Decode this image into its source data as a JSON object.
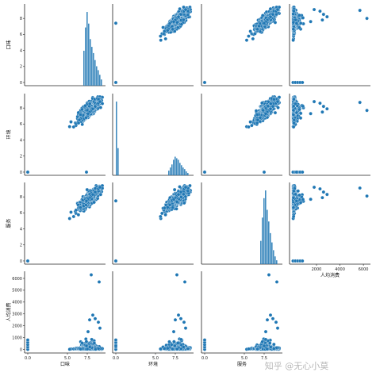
{
  "watermark": "知乎 @无心小莫",
  "chart_data": {
    "type": "scatter",
    "layout": "pairplot",
    "variables": [
      "口味",
      "环境",
      "服务",
      "人均消费"
    ],
    "colors": {
      "marker": "#1f77b4",
      "marker_edge": "#ffffff",
      "hist": "#1f77b4"
    },
    "grid": false,
    "axes": {
      "口味": {
        "range": [
          -0.4,
          9.8
        ],
        "ticks": [
          0,
          2,
          4,
          6,
          8
        ]
      },
      "环境": {
        "range": [
          -0.4,
          9.8
        ],
        "ticks": [
          0,
          2,
          4,
          6,
          8
        ]
      },
      "服务": {
        "range": [
          -0.4,
          9.8
        ],
        "ticks": [
          0,
          2,
          4,
          6,
          8
        ]
      },
      "人均消费": {
        "range": [
          -300,
          6600
        ],
        "ticks": [
          0,
          1000,
          2000,
          3000,
          4000,
          5000,
          6000
        ]
      }
    },
    "x_tick_labels": {
      "口味": [
        "0.0",
        "5.0",
        "7.5"
      ],
      "环境": [
        "0.0",
        "5.0",
        "7.5"
      ],
      "服务": [
        "0.0",
        "5.0",
        "7.5"
      ],
      "人均消费": [
        "2000",
        "4000",
        "6000"
      ]
    },
    "x_tick_values": {
      "口味": [
        0,
        5,
        7.5
      ],
      "环境": [
        0,
        5,
        7.5
      ],
      "服务": [
        0,
        5,
        7.5
      ],
      "人均消费": [
        2000,
        4000,
        6000
      ]
    },
    "y_tick_labels": {
      "口味": [
        "0",
        "2",
        "4",
        "6",
        "8"
      ],
      "环境": [
        "0",
        "2",
        "4",
        "6",
        "8"
      ],
      "服务": [
        "0",
        "2",
        "4",
        "6",
        "8"
      ],
      "人均消费": [
        "0",
        "1000",
        "2000",
        "3000",
        "4000",
        "5000",
        "6000"
      ]
    },
    "histograms": {
      "口味": {
        "bins": [
          7.0,
          7.2,
          7.4,
          7.6,
          7.8,
          8.0,
          8.2,
          8.4,
          8.6,
          8.8,
          9.0,
          9.2
        ],
        "heights": [
          0.45,
          0.75,
          0.95,
          0.8,
          0.6,
          0.5,
          0.42,
          0.33,
          0.25,
          0.2,
          0.14,
          0.08
        ]
      },
      "环境": {
        "bins": [
          0.0,
          0.2,
          6.6,
          6.8,
          7.0,
          7.2,
          7.4,
          7.6,
          7.8,
          8.0,
          8.2,
          8.4,
          8.6,
          8.8,
          9.0
        ],
        "heights": [
          0.95,
          0.35,
          0.06,
          0.1,
          0.14,
          0.2,
          0.24,
          0.22,
          0.2,
          0.16,
          0.13,
          0.1,
          0.08,
          0.05,
          0.03
        ]
      },
      "服务": {
        "bins": [
          7.0,
          7.2,
          7.4,
          7.6,
          7.8,
          8.0,
          8.2,
          8.4,
          8.6,
          8.8,
          9.0
        ],
        "heights": [
          0.3,
          0.6,
          0.85,
          0.95,
          0.7,
          0.55,
          0.4,
          0.28,
          0.18,
          0.1,
          0.05
        ]
      }
    },
    "zero_points": {
      "rating": [
        0,
        0
      ],
      "cost_at_zero_rating": [
        0,
        200,
        400,
        600,
        800
      ]
    },
    "outliers": {
      "cost": [
        6300,
        5700,
        2900,
        2600,
        2500,
        2300,
        1800,
        1500
      ],
      "rating_for_outliers": [
        8.0,
        9.0,
        8.2,
        8.5,
        7.8,
        8.9,
        9.1,
        7.6
      ]
    }
  }
}
